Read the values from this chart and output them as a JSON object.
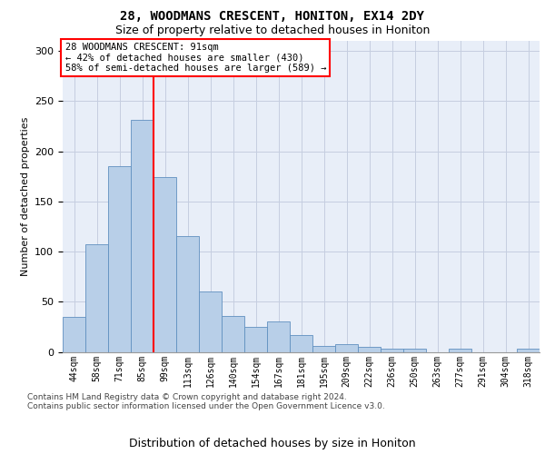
{
  "title": "28, WOODMANS CRESCENT, HONITON, EX14 2DY",
  "subtitle": "Size of property relative to detached houses in Honiton",
  "xlabel": "Distribution of detached houses by size in Honiton",
  "ylabel": "Number of detached properties",
  "categories": [
    "44sqm",
    "58sqm",
    "71sqm",
    "85sqm",
    "99sqm",
    "113sqm",
    "126sqm",
    "140sqm",
    "154sqm",
    "167sqm",
    "181sqm",
    "195sqm",
    "209sqm",
    "222sqm",
    "236sqm",
    "250sqm",
    "263sqm",
    "277sqm",
    "291sqm",
    "304sqm",
    "318sqm"
  ],
  "bar_values": [
    35,
    107,
    185,
    231,
    174,
    115,
    60,
    36,
    25,
    30,
    17,
    6,
    8,
    5,
    3,
    3,
    0,
    3,
    0,
    0,
    3
  ],
  "bar_color": "#b8cfe8",
  "bar_edge_color": "#6090c0",
  "annotation_line1": "28 WOODMANS CRESCENT: 91sqm",
  "annotation_line2": "← 42% of detached houses are smaller (430)",
  "annotation_line3": "58% of semi-detached houses are larger (589) →",
  "annotation_box_edge": "red",
  "property_line_color": "red",
  "property_line_index": 3.5,
  "footer_line1": "Contains HM Land Registry data © Crown copyright and database right 2024.",
  "footer_line2": "Contains public sector information licensed under the Open Government Licence v3.0.",
  "ylim_max": 310,
  "yticks": [
    0,
    50,
    100,
    150,
    200,
    250,
    300
  ],
  "background_color": "#e8eef8",
  "grid_color": "#c5cee0",
  "title_fontsize": 10,
  "subtitle_fontsize": 9,
  "ylabel_fontsize": 8,
  "xlabel_fontsize": 9,
  "tick_fontsize": 7,
  "footer_fontsize": 6.5
}
